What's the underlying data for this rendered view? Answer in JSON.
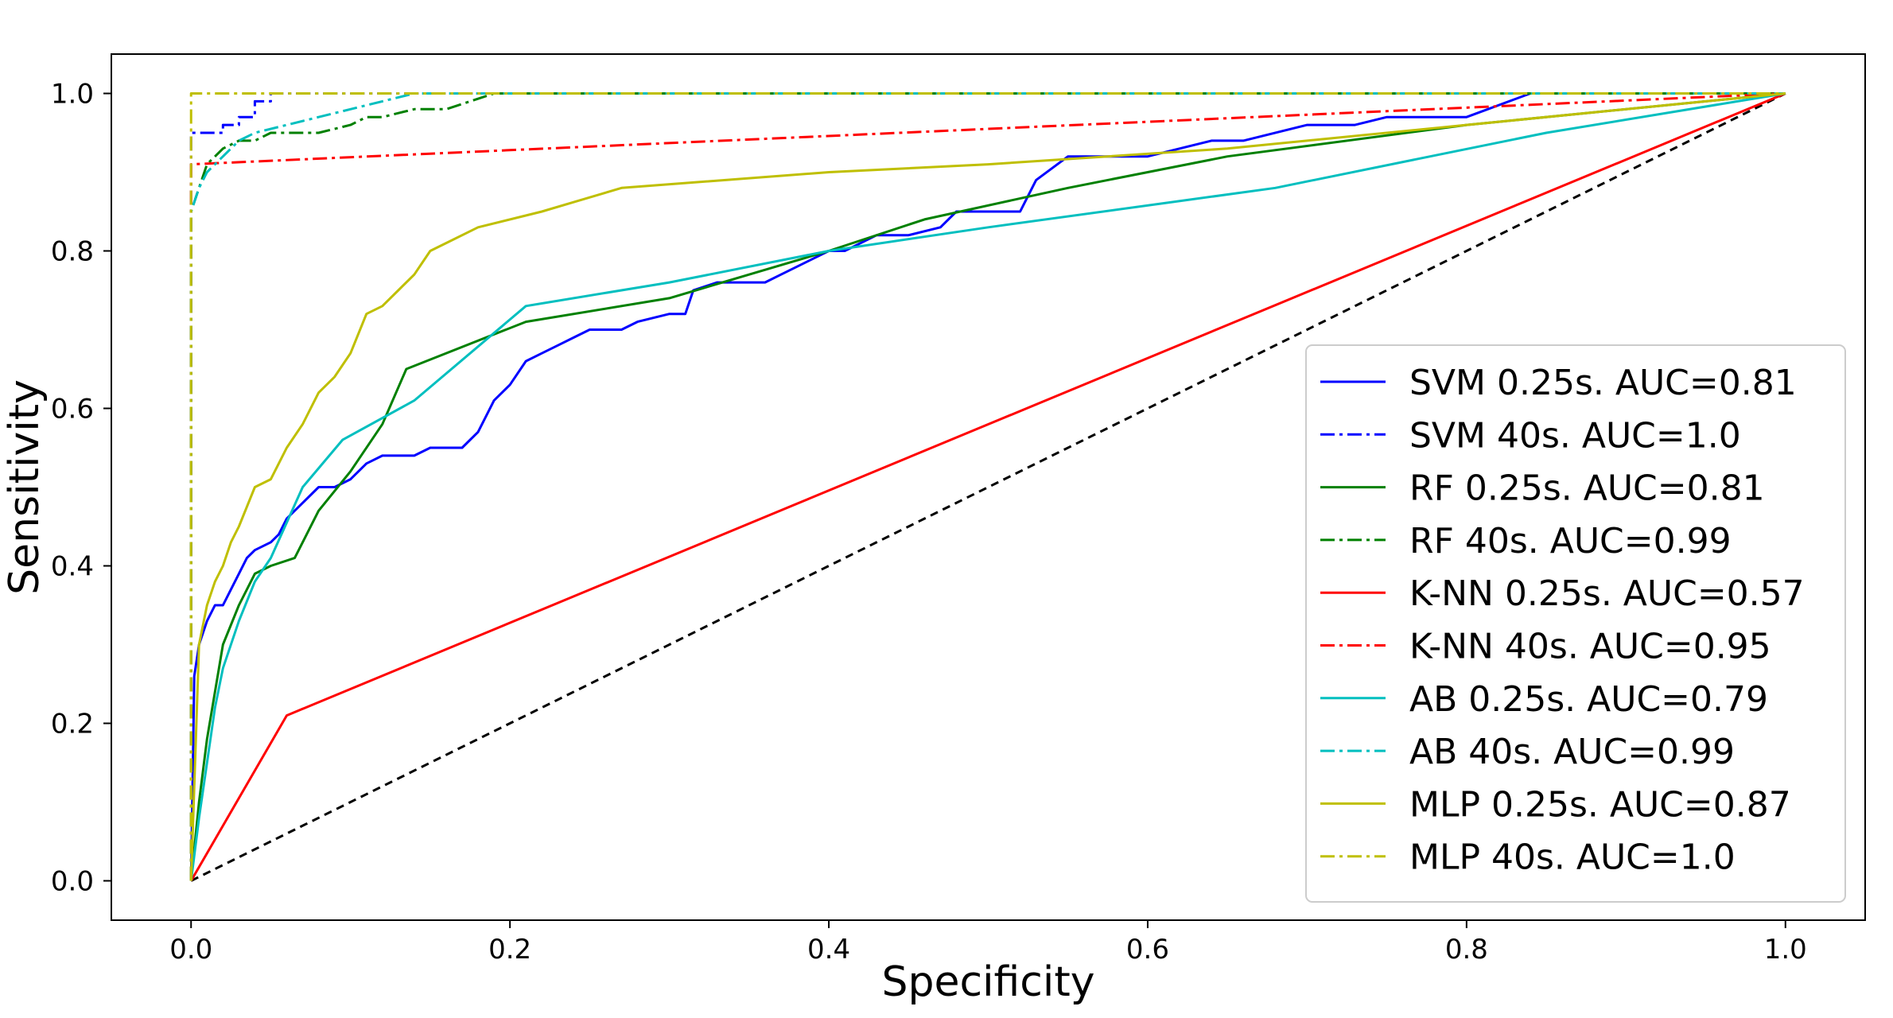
{
  "chart_data": {
    "type": "line",
    "title": "",
    "xlabel": "Specificity",
    "ylabel": "Sensitivity",
    "xlim": [
      -0.05,
      1.05
    ],
    "ylim": [
      -0.05,
      1.05
    ],
    "xticks": [
      0.0,
      0.2,
      0.4,
      0.6,
      0.8,
      1.0
    ],
    "xtick_labels": [
      "0.0",
      "0.2",
      "0.4",
      "0.6",
      "0.8",
      "1.0"
    ],
    "yticks": [
      0.0,
      0.2,
      0.4,
      0.6,
      0.8,
      1.0
    ],
    "ytick_labels": [
      "0.0",
      "0.2",
      "0.4",
      "0.6",
      "0.8",
      "1.0"
    ],
    "grid": false,
    "legend_position": "lower-right",
    "reference_line": {
      "color": "#000000",
      "style": "dashed",
      "points": [
        [
          0,
          0
        ],
        [
          1,
          1
        ]
      ]
    },
    "series": [
      {
        "name": "SVM 0.25s. AUC=0.81",
        "color": "#0000ff",
        "style": "solid",
        "points": [
          [
            0,
            0
          ],
          [
            0.002,
            0.26
          ],
          [
            0.005,
            0.3
          ],
          [
            0.01,
            0.33
          ],
          [
            0.015,
            0.35
          ],
          [
            0.02,
            0.35
          ],
          [
            0.025,
            0.37
          ],
          [
            0.03,
            0.39
          ],
          [
            0.035,
            0.41
          ],
          [
            0.04,
            0.42
          ],
          [
            0.05,
            0.43
          ],
          [
            0.055,
            0.44
          ],
          [
            0.06,
            0.46
          ],
          [
            0.065,
            0.47
          ],
          [
            0.07,
            0.48
          ],
          [
            0.08,
            0.5
          ],
          [
            0.09,
            0.5
          ],
          [
            0.1,
            0.51
          ],
          [
            0.105,
            0.52
          ],
          [
            0.11,
            0.53
          ],
          [
            0.12,
            0.54
          ],
          [
            0.14,
            0.54
          ],
          [
            0.15,
            0.55
          ],
          [
            0.17,
            0.55
          ],
          [
            0.18,
            0.57
          ],
          [
            0.19,
            0.61
          ],
          [
            0.2,
            0.63
          ],
          [
            0.21,
            0.66
          ],
          [
            0.22,
            0.67
          ],
          [
            0.23,
            0.68
          ],
          [
            0.24,
            0.69
          ],
          [
            0.25,
            0.7
          ],
          [
            0.27,
            0.7
          ],
          [
            0.28,
            0.71
          ],
          [
            0.3,
            0.72
          ],
          [
            0.31,
            0.72
          ],
          [
            0.315,
            0.75
          ],
          [
            0.33,
            0.76
          ],
          [
            0.36,
            0.76
          ],
          [
            0.37,
            0.77
          ],
          [
            0.38,
            0.78
          ],
          [
            0.4,
            0.8
          ],
          [
            0.41,
            0.8
          ],
          [
            0.43,
            0.82
          ],
          [
            0.45,
            0.82
          ],
          [
            0.47,
            0.83
          ],
          [
            0.48,
            0.85
          ],
          [
            0.52,
            0.85
          ],
          [
            0.53,
            0.89
          ],
          [
            0.55,
            0.92
          ],
          [
            0.6,
            0.92
          ],
          [
            0.64,
            0.94
          ],
          [
            0.66,
            0.94
          ],
          [
            0.7,
            0.96
          ],
          [
            0.73,
            0.96
          ],
          [
            0.75,
            0.97
          ],
          [
            0.8,
            0.97
          ],
          [
            0.84,
            1.0
          ],
          [
            1,
            1
          ]
        ]
      },
      {
        "name": "SVM 40s. AUC=1.0",
        "color": "#0000ff",
        "style": "dashdot",
        "points": [
          [
            0,
            0
          ],
          [
            0,
            0.95
          ],
          [
            0.02,
            0.95
          ],
          [
            0.02,
            0.96
          ],
          [
            0.03,
            0.96
          ],
          [
            0.03,
            0.97
          ],
          [
            0.04,
            0.97
          ],
          [
            0.04,
            0.99
          ],
          [
            0.05,
            0.99
          ],
          [
            0.05,
            1.0
          ],
          [
            1,
            1
          ]
        ]
      },
      {
        "name": "RF 0.25s. AUC=0.81",
        "color": "#008000",
        "style": "solid",
        "points": [
          [
            0,
            0
          ],
          [
            0.005,
            0.1
          ],
          [
            0.01,
            0.18
          ],
          [
            0.015,
            0.24
          ],
          [
            0.02,
            0.3
          ],
          [
            0.03,
            0.35
          ],
          [
            0.04,
            0.39
          ],
          [
            0.05,
            0.4
          ],
          [
            0.065,
            0.41
          ],
          [
            0.08,
            0.47
          ],
          [
            0.1,
            0.52
          ],
          [
            0.12,
            0.58
          ],
          [
            0.135,
            0.65
          ],
          [
            0.21,
            0.71
          ],
          [
            0.3,
            0.74
          ],
          [
            0.4,
            0.8
          ],
          [
            0.46,
            0.84
          ],
          [
            0.55,
            0.88
          ],
          [
            0.65,
            0.92
          ],
          [
            0.8,
            0.96
          ],
          [
            1,
            1
          ]
        ]
      },
      {
        "name": "RF 40s. AUC=0.99",
        "color": "#008000",
        "style": "dashdot",
        "points": [
          [
            0,
            0
          ],
          [
            0,
            0.85
          ],
          [
            0.005,
            0.88
          ],
          [
            0.01,
            0.91
          ],
          [
            0.02,
            0.93
          ],
          [
            0.03,
            0.94
          ],
          [
            0.04,
            0.94
          ],
          [
            0.05,
            0.95
          ],
          [
            0.08,
            0.95
          ],
          [
            0.1,
            0.96
          ],
          [
            0.11,
            0.97
          ],
          [
            0.12,
            0.97
          ],
          [
            0.14,
            0.98
          ],
          [
            0.16,
            0.98
          ],
          [
            0.19,
            1.0
          ],
          [
            1,
            1
          ]
        ]
      },
      {
        "name": "K-NN 0.25s. AUC=0.57",
        "color": "#ff0000",
        "style": "solid",
        "points": [
          [
            0,
            0
          ],
          [
            0.06,
            0.21
          ],
          [
            1,
            1
          ]
        ]
      },
      {
        "name": "K-NN 40s. AUC=0.95",
        "color": "#ff0000",
        "style": "dashdot",
        "points": [
          [
            0,
            0
          ],
          [
            0,
            0.91
          ],
          [
            1,
            1
          ]
        ]
      },
      {
        "name": "AB 0.25s. AUC=0.79",
        "color": "#00bfbf",
        "style": "solid",
        "points": [
          [
            0,
            0
          ],
          [
            0.005,
            0.08
          ],
          [
            0.01,
            0.15
          ],
          [
            0.015,
            0.22
          ],
          [
            0.02,
            0.27
          ],
          [
            0.03,
            0.33
          ],
          [
            0.04,
            0.38
          ],
          [
            0.05,
            0.41
          ],
          [
            0.07,
            0.5
          ],
          [
            0.095,
            0.56
          ],
          [
            0.14,
            0.61
          ],
          [
            0.21,
            0.73
          ],
          [
            0.3,
            0.76
          ],
          [
            0.4,
            0.8
          ],
          [
            0.5,
            0.83
          ],
          [
            0.68,
            0.88
          ],
          [
            0.85,
            0.95
          ],
          [
            1,
            1
          ]
        ]
      },
      {
        "name": "AB 40s. AUC=0.99",
        "color": "#00bfbf",
        "style": "dashdot",
        "points": [
          [
            0,
            0
          ],
          [
            0,
            0.85
          ],
          [
            0.005,
            0.88
          ],
          [
            0.01,
            0.9
          ],
          [
            0.02,
            0.92
          ],
          [
            0.03,
            0.94
          ],
          [
            0.04,
            0.95
          ],
          [
            0.06,
            0.96
          ],
          [
            0.08,
            0.97
          ],
          [
            0.1,
            0.98
          ],
          [
            0.12,
            0.99
          ],
          [
            0.14,
            1.0
          ],
          [
            1,
            1
          ]
        ]
      },
      {
        "name": "MLP 0.25s. AUC=0.87",
        "color": "#bfbf00",
        "style": "solid",
        "points": [
          [
            0,
            0
          ],
          [
            0.005,
            0.3
          ],
          [
            0.01,
            0.35
          ],
          [
            0.015,
            0.38
          ],
          [
            0.02,
            0.4
          ],
          [
            0.025,
            0.43
          ],
          [
            0.03,
            0.45
          ],
          [
            0.04,
            0.5
          ],
          [
            0.05,
            0.51
          ],
          [
            0.06,
            0.55
          ],
          [
            0.07,
            0.58
          ],
          [
            0.08,
            0.62
          ],
          [
            0.09,
            0.64
          ],
          [
            0.1,
            0.67
          ],
          [
            0.11,
            0.72
          ],
          [
            0.12,
            0.73
          ],
          [
            0.13,
            0.75
          ],
          [
            0.14,
            0.77
          ],
          [
            0.15,
            0.8
          ],
          [
            0.16,
            0.81
          ],
          [
            0.18,
            0.83
          ],
          [
            0.22,
            0.85
          ],
          [
            0.27,
            0.88
          ],
          [
            0.4,
            0.9
          ],
          [
            0.5,
            0.91
          ],
          [
            0.65,
            0.93
          ],
          [
            0.8,
            0.96
          ],
          [
            1,
            1
          ]
        ]
      },
      {
        "name": "MLP 40s. AUC=1.0",
        "color": "#bfbf00",
        "style": "dashdot",
        "points": [
          [
            0,
            0
          ],
          [
            0,
            1.0
          ],
          [
            1,
            1
          ]
        ]
      }
    ]
  }
}
